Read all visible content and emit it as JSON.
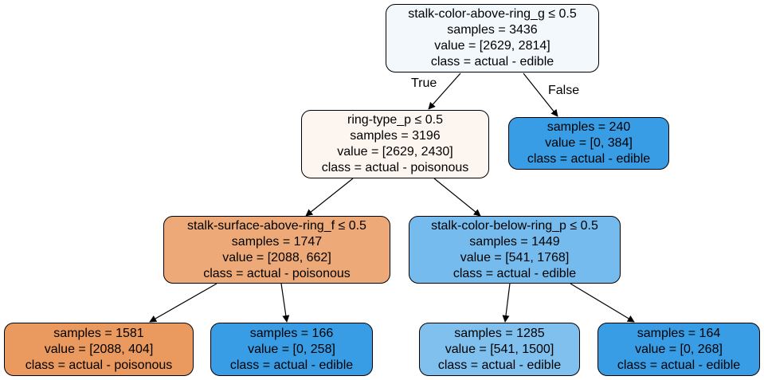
{
  "tree": {
    "root": {
      "split": "stalk-color-above-ring_g ≤ 0.5",
      "samples": "samples = 3436",
      "value": "value = [2629, 2814]",
      "class": "class = actual - edible",
      "color": "#f3f8fd"
    },
    "n1": {
      "split": "ring-type_p ≤ 0.5",
      "samples": "samples = 3196",
      "value": "value = [2629, 2430]",
      "class": "class = actual - poisonous",
      "color": "#fdf5f0"
    },
    "n2": {
      "samples": "samples = 240",
      "value": "value = [0, 384]",
      "class": "class = actual - edible",
      "color": "#399de5"
    },
    "n3": {
      "split": "stalk-surface-above-ring_f ≤ 0.5",
      "samples": "samples = 1747",
      "value": "value = [2088, 662]",
      "class": "class = actual - poisonous",
      "color": "#eda978"
    },
    "n4": {
      "split": "stalk-color-below-ring_p ≤ 0.5",
      "samples": "samples = 1449",
      "value": "value = [541, 1768]",
      "class": "class = actual - edible",
      "color": "#76bbed"
    },
    "n5": {
      "samples": "samples = 1581",
      "value": "value = [2088, 404]",
      "class": "class = actual - poisonous",
      "color": "#ea995f"
    },
    "n6": {
      "samples": "samples = 166",
      "value": "value = [0, 258]",
      "class": "class = actual - edible",
      "color": "#399de5"
    },
    "n7": {
      "samples": "samples = 1285",
      "value": "value = [541, 1500]",
      "class": "class = actual - edible",
      "color": "#80c0ee"
    },
    "n8": {
      "samples": "samples = 164",
      "value": "value = [0, 268]",
      "class": "class = actual - edible",
      "color": "#399de5"
    }
  },
  "edges": {
    "true_label": "True",
    "false_label": "False"
  }
}
